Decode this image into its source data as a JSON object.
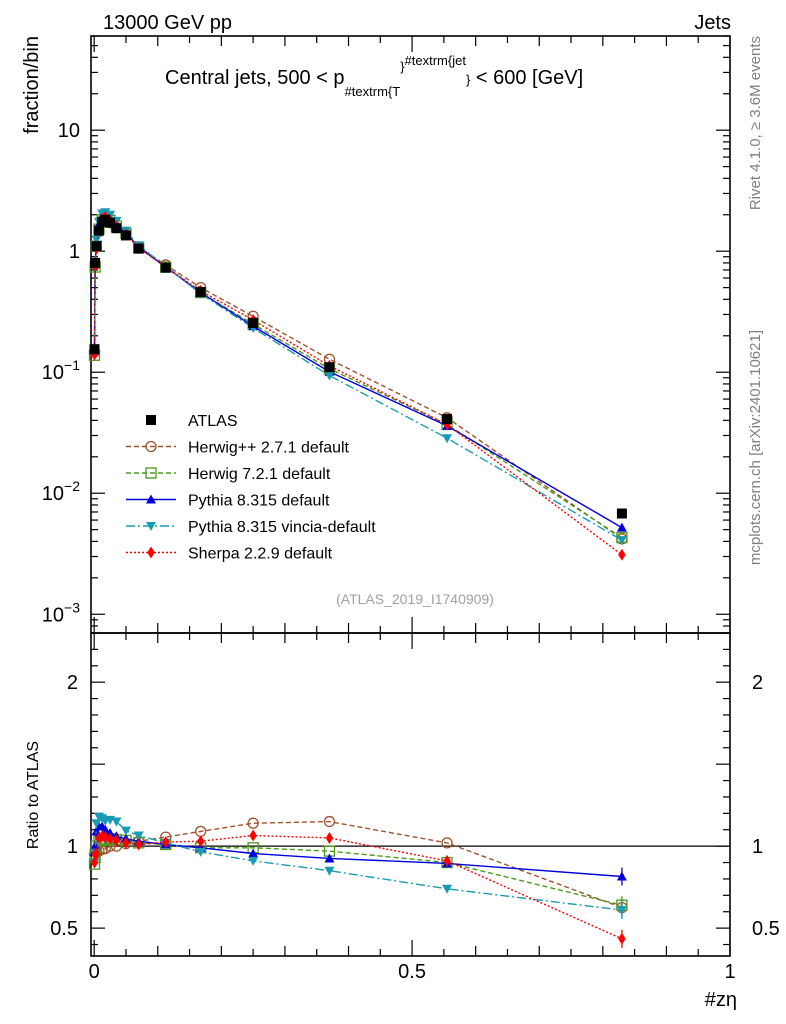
{
  "header": {
    "left": "13000 GeV pp",
    "right": "Jets"
  },
  "side_labels": {
    "rivet": "Rivet 4.1.0, ≥ 3.6M events",
    "mcplots": "mcplots.cern.ch [arXiv:2401.10621]"
  },
  "watermark": "(ATLAS_2019_I1740909)",
  "chart_data": [
    {
      "type": "line",
      "panel": "main",
      "title": "Central jets, 500 < p_{#textrm{T}}^{#textrm{jet}} < 600 [GeV]",
      "title_parts": {
        "pre": "Central jets, 500 < p",
        "sub": "#textrm{T",
        "sub_close": "}",
        "sup": "#textrm{jet",
        "sup_close": "}",
        "post": " < 600 [GeV]"
      },
      "ylabel": "fraction/bin",
      "yscale": "log",
      "ylim": [
        0.0007,
        60
      ],
      "xlim": [
        -0.005,
        1.0
      ],
      "yticks": [
        {
          "v": 10,
          "base": "10",
          "exp": ""
        },
        {
          "v": 1,
          "base": "1",
          "exp": ""
        },
        {
          "v": 0.1,
          "base": "10",
          "exp": "−1"
        },
        {
          "v": 0.01,
          "base": "10",
          "exp": "−2"
        },
        {
          "v": 0.001,
          "base": "10",
          "exp": "−3"
        }
      ],
      "x": [
        0.0005,
        0.0015,
        0.0035,
        0.0075,
        0.0125,
        0.0175,
        0.025,
        0.035,
        0.05,
        0.07,
        0.1125,
        0.1675,
        0.25,
        0.37,
        0.555,
        0.83
      ],
      "series": [
        {
          "name": "ATLAS",
          "style": "data",
          "color": "#000000",
          "values": [
            0.155,
            0.8,
            1.1,
            1.48,
            1.75,
            1.82,
            1.72,
            1.55,
            1.35,
            1.05,
            0.73,
            0.46,
            0.255,
            0.11,
            0.041,
            0.0068
          ]
        },
        {
          "name": "Herwig++ 2.7.1 default",
          "style": "herwig",
          "color": "#a0522d",
          "dash": "5,3",
          "marker": "circle-open",
          "values": [
            0.148,
            0.78,
            1.1,
            1.45,
            1.72,
            1.8,
            1.72,
            1.56,
            1.37,
            1.08,
            0.77,
            0.5,
            0.29,
            0.128,
            0.042,
            0.0042
          ]
        },
        {
          "name": "Herwig 7.2.1 default",
          "style": "herwig7",
          "color": "#4b9a1e",
          "dash": "5,3",
          "marker": "square-open",
          "values": [
            0.138,
            0.74,
            1.1,
            1.52,
            1.82,
            1.88,
            1.8,
            1.61,
            1.4,
            1.07,
            0.74,
            0.455,
            0.25,
            0.107,
            0.037,
            0.0043
          ]
        },
        {
          "name": "Pythia 8.315 default",
          "style": "pythia",
          "color": "#0000dd",
          "dash": "",
          "marker": "triangle-up",
          "values": [
            0.15,
            0.8,
            1.2,
            1.66,
            1.96,
            2.0,
            1.85,
            1.64,
            1.41,
            1.08,
            0.74,
            0.455,
            0.24,
            0.101,
            0.036,
            0.0052
          ]
        },
        {
          "name": "Pythia 8.315 vincia-default",
          "style": "vincia",
          "color": "#1a9bb5",
          "dash": "9,3,2,3",
          "marker": "triangle-down",
          "values": [
            0.14,
            0.77,
            1.25,
            1.75,
            2.05,
            2.1,
            2.0,
            1.78,
            1.48,
            1.12,
            0.745,
            0.445,
            0.232,
            0.094,
            0.0285,
            0.0041
          ]
        },
        {
          "name": "Sherpa 2.2.9 default",
          "style": "sherpa",
          "color": "#ff0000",
          "dash": "2,2",
          "marker": "diamond",
          "values": [
            0.14,
            0.76,
            1.05,
            1.55,
            1.85,
            1.92,
            1.8,
            1.6,
            1.38,
            1.06,
            0.74,
            0.47,
            0.27,
            0.113,
            0.037,
            0.0031
          ]
        }
      ]
    },
    {
      "type": "line",
      "panel": "ratio",
      "ylabel": "Ratio to ATLAS",
      "xlabel": "#zη",
      "yscale": "linear",
      "ylim": [
        0.33,
        2.3
      ],
      "xlim": [
        -0.005,
        1.0
      ],
      "xticks": [
        {
          "v": 0,
          "label": "0"
        },
        {
          "v": 0.5,
          "label": "0.5"
        },
        {
          "v": 1,
          "label": "1"
        }
      ],
      "yticks": [
        {
          "v": 2,
          "label": "2"
        },
        {
          "v": 1,
          "label": "1"
        },
        {
          "v": 0.5,
          "label": "0.5"
        }
      ],
      "x": [
        0.0005,
        0.0015,
        0.0035,
        0.0075,
        0.0125,
        0.0175,
        0.025,
        0.035,
        0.05,
        0.07,
        0.1125,
        0.1675,
        0.25,
        0.37,
        0.555,
        0.83
      ],
      "series": [
        {
          "name": "Herwig++ 2.7.1 default",
          "values": [
            0.95,
            0.975,
            0.96,
            0.97,
            0.98,
            0.985,
            1.0,
            1.0,
            1.015,
            1.03,
            1.055,
            1.09,
            1.14,
            1.15,
            1.02,
            0.625
          ]
        },
        {
          "name": "Herwig 7.2.1 default",
          "values": [
            0.89,
            0.93,
            1.0,
            1.03,
            1.04,
            1.035,
            1.045,
            1.04,
            1.035,
            1.02,
            1.01,
            0.99,
            0.99,
            0.97,
            0.9,
            0.64
          ]
        },
        {
          "name": "Pythia 8.315 default",
          "values": [
            0.965,
            1.0,
            1.09,
            1.12,
            1.12,
            1.1,
            1.08,
            1.06,
            1.045,
            1.03,
            1.01,
            0.99,
            0.955,
            0.925,
            0.895,
            0.815
          ]
        },
        {
          "name": "Pythia 8.315 vincia-default",
          "values": [
            0.9,
            0.96,
            1.14,
            1.18,
            1.17,
            1.155,
            1.16,
            1.15,
            1.095,
            1.065,
            1.02,
            0.965,
            0.91,
            0.85,
            0.74,
            0.61
          ]
        },
        {
          "name": "Sherpa 2.2.9 default",
          "values": [
            0.9,
            0.95,
            0.955,
            1.05,
            1.06,
            1.055,
            1.045,
            1.035,
            1.02,
            1.01,
            1.025,
            1.03,
            1.065,
            1.05,
            0.91,
            0.435
          ]
        }
      ]
    }
  ]
}
